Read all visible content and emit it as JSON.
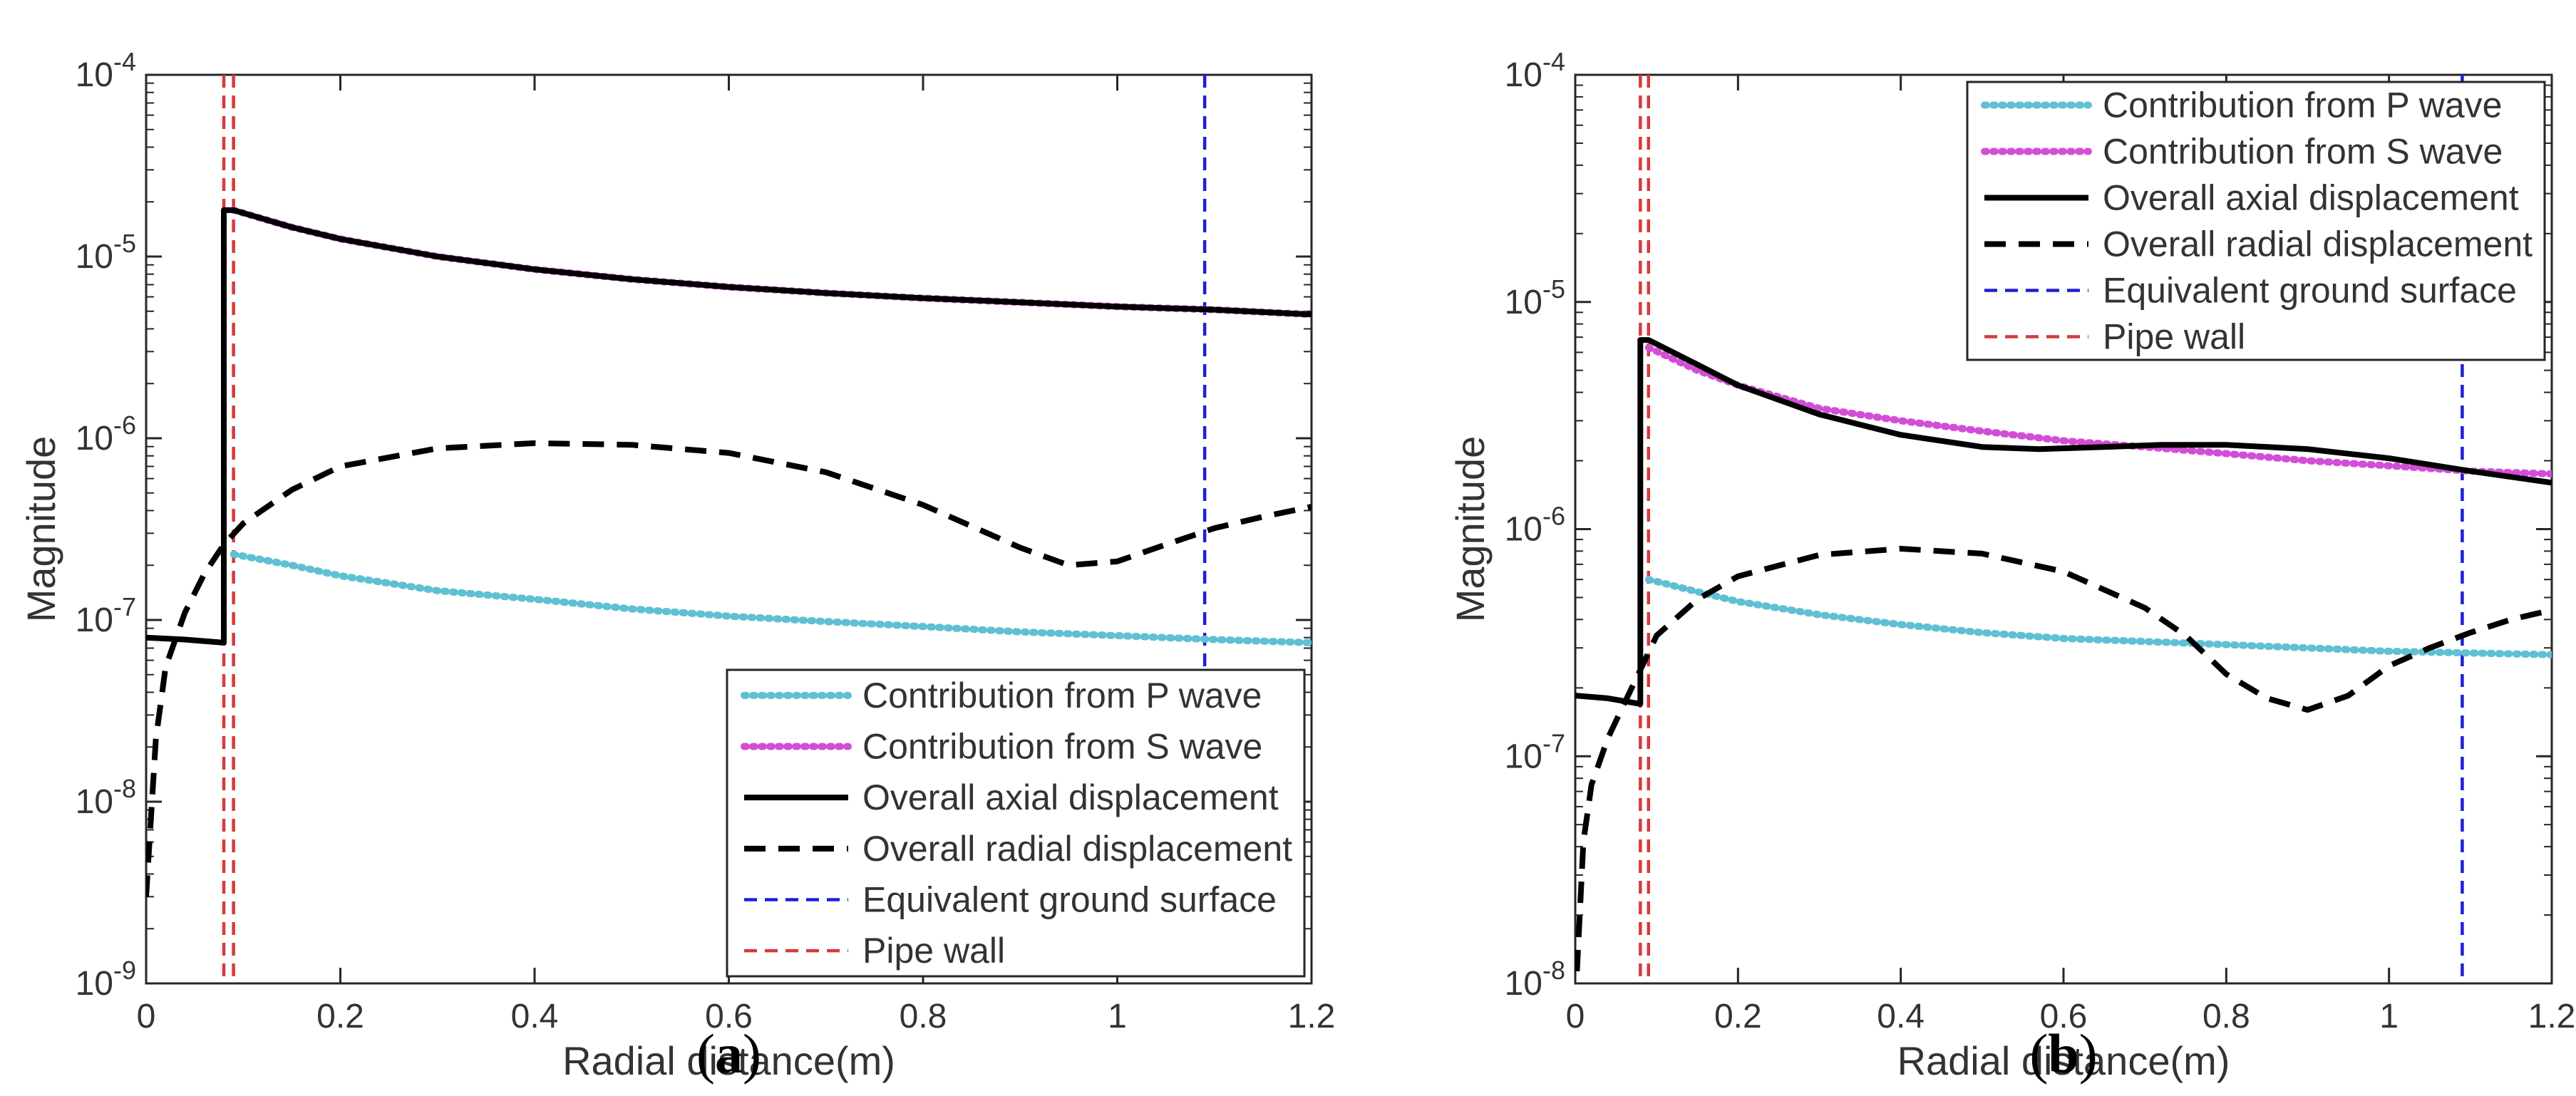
{
  "colors": {
    "p_wave": "#5fc0d4",
    "s_wave": "#d34ed6",
    "axial": "#000000",
    "radial": "#000000",
    "ground": "#1f1fd6",
    "pipe": "#d73a3a"
  },
  "chart_data": [
    {
      "type": "line",
      "panel_label": "(a)",
      "panel_label_letter": "a",
      "xlabel": "Radial distance(m)",
      "ylabel": "Magnitude",
      "xlim": [
        0,
        1.2
      ],
      "ylim_log10": [
        -9,
        -4
      ],
      "x_ticks": [
        "0",
        "0.2",
        "0.4",
        "0.6",
        "0.8",
        "1",
        "1.2"
      ],
      "y_ticks": [
        {
          "base": "10",
          "exp": "-4"
        },
        {
          "base": "10",
          "exp": "-5"
        },
        {
          "base": "10",
          "exp": "-6"
        },
        {
          "base": "10",
          "exp": "-7"
        },
        {
          "base": "10",
          "exp": "-8"
        },
        {
          "base": "10",
          "exp": "-9"
        }
      ],
      "legend_position": "bottom-right",
      "vlines": {
        "pipe_wall": [
          0.08,
          0.09
        ],
        "ground_surface": 1.09
      },
      "series": [
        {
          "name": "Contribution from P wave",
          "style": "dotted",
          "color_key": "p_wave",
          "x": [
            0.09,
            0.15,
            0.2,
            0.3,
            0.4,
            0.5,
            0.6,
            0.7,
            0.8,
            0.9,
            1.0,
            1.1,
            1.2
          ],
          "y": [
            2.3e-07,
            2e-07,
            1.75e-07,
            1.45e-07,
            1.3e-07,
            1.15e-07,
            1.05e-07,
            9.8e-08,
            9.2e-08,
            8.6e-08,
            8.2e-08,
            7.8e-08,
            7.5e-08
          ]
        },
        {
          "name": "Contribution from S wave",
          "style": "dotted",
          "color_key": "s_wave",
          "x": [
            0.09,
            0.15,
            0.2,
            0.3,
            0.4,
            0.5,
            0.6,
            0.7,
            0.8,
            0.9,
            1.0,
            1.1,
            1.2
          ],
          "y": [
            1.8e-05,
            1.45e-05,
            1.25e-05,
            1e-05,
            8.5e-06,
            7.5e-06,
            6.8e-06,
            6.3e-06,
            5.9e-06,
            5.6e-06,
            5.3e-06,
            5.1e-06,
            4.8e-06
          ]
        },
        {
          "name": "Overall axial displacement",
          "style": "solid",
          "color_key": "axial",
          "x": [
            0,
            0.04,
            0.08,
            0.08,
            0.09,
            0.15,
            0.2,
            0.3,
            0.4,
            0.5,
            0.6,
            0.7,
            0.8,
            0.9,
            1.0,
            1.1,
            1.2
          ],
          "y": [
            8e-08,
            7.8e-08,
            7.5e-08,
            1.8e-05,
            1.8e-05,
            1.45e-05,
            1.25e-05,
            1e-05,
            8.5e-06,
            7.5e-06,
            6.8e-06,
            6.3e-06,
            5.9e-06,
            5.6e-06,
            5.3e-06,
            5.1e-06,
            4.8e-06
          ]
        },
        {
          "name": "Overall radial displacement",
          "style": "dashed",
          "color_key": "radial",
          "x": [
            0.0,
            0.01,
            0.02,
            0.04,
            0.06,
            0.08,
            0.1,
            0.15,
            0.2,
            0.3,
            0.4,
            0.5,
            0.6,
            0.7,
            0.8,
            0.9,
            0.95,
            1.0,
            1.05,
            1.1,
            1.15,
            1.2
          ],
          "y": [
            3e-09,
            2.2e-08,
            5.5e-08,
            1.1e-07,
            1.8e-07,
            2.6e-07,
            3.4e-07,
            5.2e-07,
            7e-07,
            8.8e-07,
            9.4e-07,
            9.2e-07,
            8.3e-07,
            6.5e-07,
            4.3e-07,
            2.5e-07,
            2e-07,
            2.1e-07,
            2.6e-07,
            3.2e-07,
            3.7e-07,
            4.2e-07
          ]
        }
      ],
      "legend_entries": [
        {
          "label": "Contribution from P wave",
          "style": "dotted",
          "color_key": "p_wave"
        },
        {
          "label": "Contribution from S wave",
          "style": "dotted",
          "color_key": "s_wave"
        },
        {
          "label": "Overall axial displacement",
          "style": "solid",
          "color_key": "axial"
        },
        {
          "label": "Overall radial displacement",
          "style": "dashed",
          "color_key": "radial"
        },
        {
          "label": "Equivalent ground surface",
          "style": "thin-dashed",
          "color_key": "ground"
        },
        {
          "label": "Pipe wall",
          "style": "thin-dashed",
          "color_key": "pipe"
        }
      ]
    },
    {
      "type": "line",
      "panel_label": "(b)",
      "panel_label_letter": "b",
      "xlabel": "Radial distance(m)",
      "ylabel": "Magnitude",
      "xlim": [
        0,
        1.2
      ],
      "ylim_log10": [
        -8,
        -4
      ],
      "x_ticks": [
        "0",
        "0.2",
        "0.4",
        "0.6",
        "0.8",
        "1",
        "1.2"
      ],
      "y_ticks": [
        {
          "base": "10",
          "exp": "-4"
        },
        {
          "base": "10",
          "exp": "-5"
        },
        {
          "base": "10",
          "exp": "-6"
        },
        {
          "base": "10",
          "exp": "-7"
        },
        {
          "base": "10",
          "exp": "-8"
        }
      ],
      "legend_position": "top-right",
      "vlines": {
        "pipe_wall": [
          0.08,
          0.09
        ],
        "ground_surface": 1.09
      },
      "series": [
        {
          "name": "Contribution from P wave",
          "style": "dotted",
          "color_key": "p_wave",
          "x": [
            0.09,
            0.15,
            0.2,
            0.3,
            0.4,
            0.5,
            0.6,
            0.7,
            0.8,
            0.9,
            1.0,
            1.1,
            1.2
          ],
          "y": [
            6e-07,
            5.3e-07,
            4.8e-07,
            4.2e-07,
            3.8e-07,
            3.5e-07,
            3.3e-07,
            3.2e-07,
            3.1e-07,
            3e-07,
            2.9e-07,
            2.85e-07,
            2.8e-07
          ]
        },
        {
          "name": "Contribution from S wave",
          "style": "dotted",
          "color_key": "s_wave",
          "x": [
            0.09,
            0.15,
            0.2,
            0.3,
            0.4,
            0.5,
            0.6,
            0.7,
            0.8,
            0.9,
            1.0,
            1.1,
            1.2
          ],
          "y": [
            6.3e-06,
            5e-06,
            4.3e-06,
            3.4e-06,
            3e-06,
            2.7e-06,
            2.45e-06,
            2.3e-06,
            2.15e-06,
            2e-06,
            1.9e-06,
            1.8e-06,
            1.75e-06
          ]
        },
        {
          "name": "Overall axial displacement",
          "style": "solid",
          "color_key": "axial",
          "x": [
            0,
            0.04,
            0.08,
            0.08,
            0.09,
            0.15,
            0.2,
            0.3,
            0.4,
            0.5,
            0.57,
            0.65,
            0.72,
            0.8,
            0.9,
            1.0,
            1.1,
            1.2
          ],
          "y": [
            1.85e-07,
            1.8e-07,
            1.7e-07,
            6.8e-06,
            6.8e-06,
            5.3e-06,
            4.3e-06,
            3.2e-06,
            2.6e-06,
            2.3e-06,
            2.25e-06,
            2.3e-06,
            2.35e-06,
            2.35e-06,
            2.25e-06,
            2.05e-06,
            1.8e-06,
            1.6e-06
          ]
        },
        {
          "name": "Overall radial displacement",
          "style": "dashed",
          "color_key": "radial",
          "x": [
            0.0,
            0.01,
            0.02,
            0.04,
            0.06,
            0.08,
            0.1,
            0.15,
            0.2,
            0.3,
            0.4,
            0.5,
            0.6,
            0.7,
            0.75,
            0.8,
            0.85,
            0.9,
            0.95,
            1.0,
            1.05,
            1.1,
            1.15,
            1.2
          ],
          "y": [
            8e-09,
            4.2e-08,
            7.5e-08,
            1.2e-07,
            1.7e-07,
            2.4e-07,
            3.4e-07,
            4.9e-07,
            6.2e-07,
            7.7e-07,
            8.2e-07,
            7.8e-07,
            6.5e-07,
            4.5e-07,
            3.4e-07,
            2.3e-07,
            1.8e-07,
            1.6e-07,
            1.85e-07,
            2.5e-07,
            3e-07,
            3.5e-07,
            4e-07,
            4.4e-07
          ]
        }
      ],
      "legend_entries": [
        {
          "label": "Contribution from P wave",
          "style": "dotted",
          "color_key": "p_wave"
        },
        {
          "label": "Contribution from S wave",
          "style": "dotted",
          "color_key": "s_wave"
        },
        {
          "label": "Overall axial displacement",
          "style": "solid",
          "color_key": "axial"
        },
        {
          "label": "Overall radial displacement",
          "style": "dashed",
          "color_key": "radial"
        },
        {
          "label": "Equivalent ground surface",
          "style": "thin-dashed",
          "color_key": "ground"
        },
        {
          "label": "Pipe wall",
          "style": "thin-dashed",
          "color_key": "pipe"
        }
      ]
    }
  ]
}
